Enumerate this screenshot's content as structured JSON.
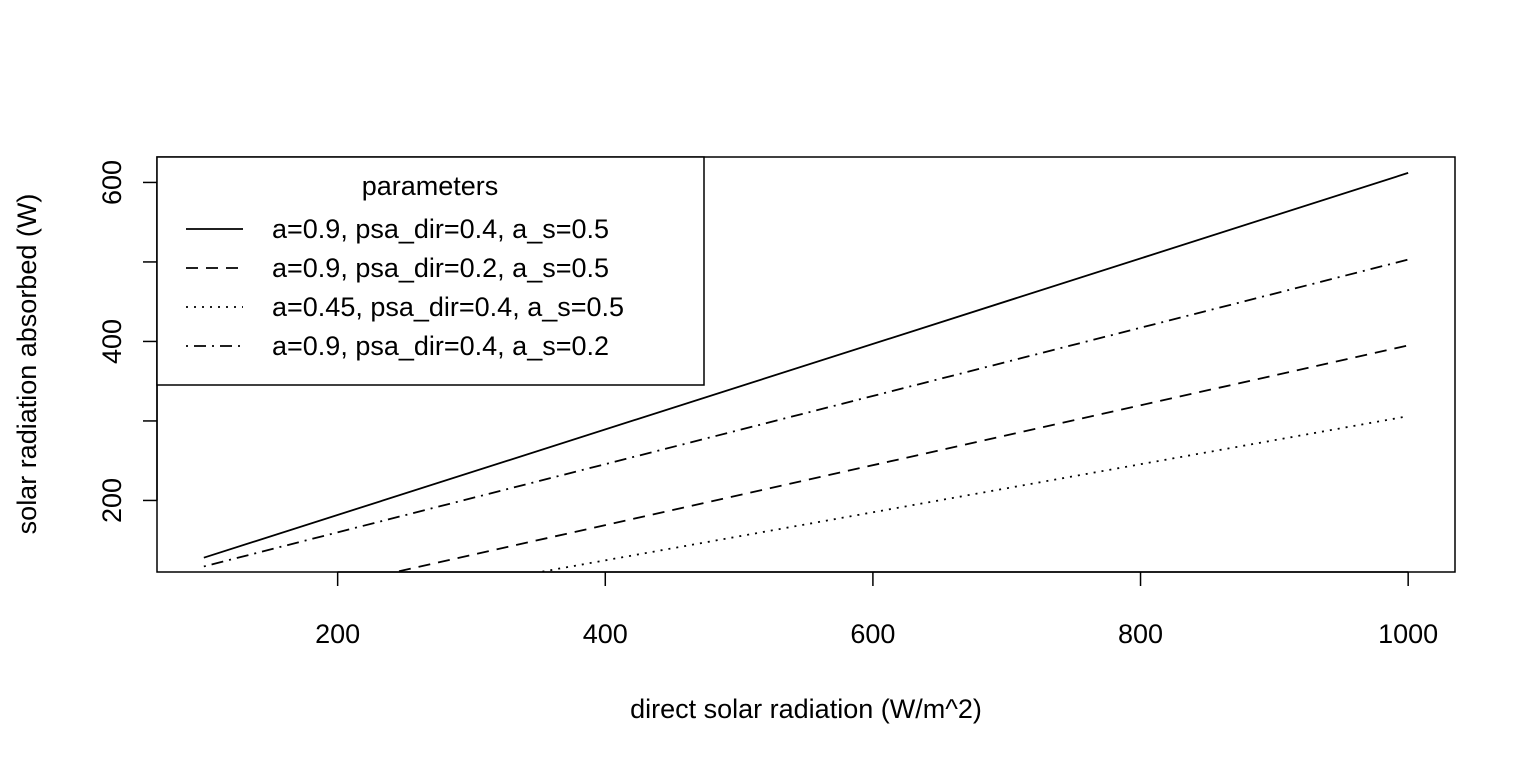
{
  "chart_data": {
    "type": "line",
    "title": "",
    "xlabel": "direct solar radiation (W/m^2)",
    "ylabel": "solar radiation absorbed (W)",
    "xlim": [
      65,
      1035
    ],
    "ylim": [
      110,
      632
    ],
    "x_ticks": [
      200,
      400,
      600,
      800,
      1000
    ],
    "y_ticks": [
      200,
      400,
      600
    ],
    "grid": false,
    "legend": {
      "title": "parameters",
      "position": "top-left"
    },
    "series": [
      {
        "name": "a=0.9, psa_dir=0.4, a_s=0.5",
        "dash": "solid",
        "x": [
          100,
          1000
        ],
        "y": [
          128,
          612
        ]
      },
      {
        "name": "a=0.9, psa_dir=0.2, a_s=0.5",
        "dash": "dashed",
        "x": [
          100,
          1000
        ],
        "y": [
          56,
          395
        ]
      },
      {
        "name": "a=0.45, psa_dir=0.4, a_s=0.5",
        "dash": "dotted",
        "x": [
          100,
          1000
        ],
        "y": [
          34,
          306
        ]
      },
      {
        "name": "a=0.9, psa_dir=0.4, a_s=0.2",
        "dash": "dotdash",
        "x": [
          100,
          1000
        ],
        "y": [
          117,
          503
        ]
      }
    ]
  }
}
